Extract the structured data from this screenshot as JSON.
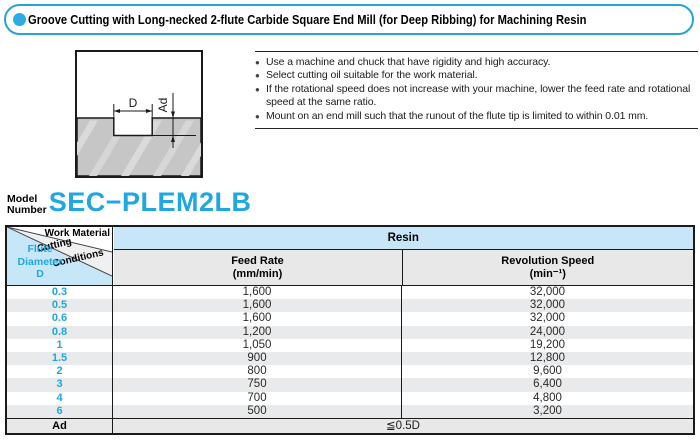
{
  "title": {
    "text": "Groove Cutting with Long-necked 2-flute Carbide Square End Mill (for Deep Ribbing) for Machining Resin"
  },
  "notes": {
    "items": [
      "Use a machine and chuck that have rigidity and high accuracy.",
      "Select cutting oil suitable for the work material.",
      "If the rotational speed does not increase with your machine, lower the feed rate and rotational speed at the same ratio.",
      "Mount on an end mill such that the runout of the flute tip is limited to within 0.01 mm."
    ],
    "bullet_glyph": "●"
  },
  "diagram": {
    "width_label": "D",
    "depth_label": "Ad"
  },
  "model": {
    "label_line1": "Model",
    "label_line2": "Number",
    "number": "SEC−PLEM2LB"
  },
  "table": {
    "corner": {
      "work_material": "Work Material",
      "cutting_line1": "Cutting",
      "cutting_line2": "Conditions",
      "flute_line1": "Flute",
      "flute_line2": "Diameter",
      "flute_line3": "D"
    },
    "material_header": "Resin",
    "columns": [
      {
        "title": "Feed Rate",
        "unit": "(mm/min)"
      },
      {
        "title": "Revolution Speed",
        "unit": "(min⁻¹)"
      }
    ],
    "rows": [
      {
        "d": "0.3",
        "feed": "1,600",
        "rev": "32,000"
      },
      {
        "d": "0.5",
        "feed": "1,600",
        "rev": "32,000"
      },
      {
        "d": "0.6",
        "feed": "1,600",
        "rev": "32,000"
      },
      {
        "d": "0.8",
        "feed": "1,200",
        "rev": "24,000"
      },
      {
        "d": "1",
        "feed": "1,050",
        "rev": "19,200"
      },
      {
        "d": "1.5",
        "feed": "900",
        "rev": "12,800"
      },
      {
        "d": "2",
        "feed": "800",
        "rev": "9,600"
      },
      {
        "d": "3",
        "feed": "750",
        "rev": "6,400"
      },
      {
        "d": "4",
        "feed": "700",
        "rev": "4,800"
      },
      {
        "d": "6",
        "feed": "500",
        "rev": "3,200"
      }
    ],
    "footer": {
      "label": "Ad",
      "value": "≦0.5D"
    }
  },
  "colors": {
    "accent_blue": "#1ea7e0",
    "title_border_blue": "#29a3d7",
    "header_blue_bg": "#c7e6f7",
    "header_gray_bg": "#e8e8e8",
    "row_stripe": "#e9eaeb",
    "line_black": "#1a1a1a"
  }
}
